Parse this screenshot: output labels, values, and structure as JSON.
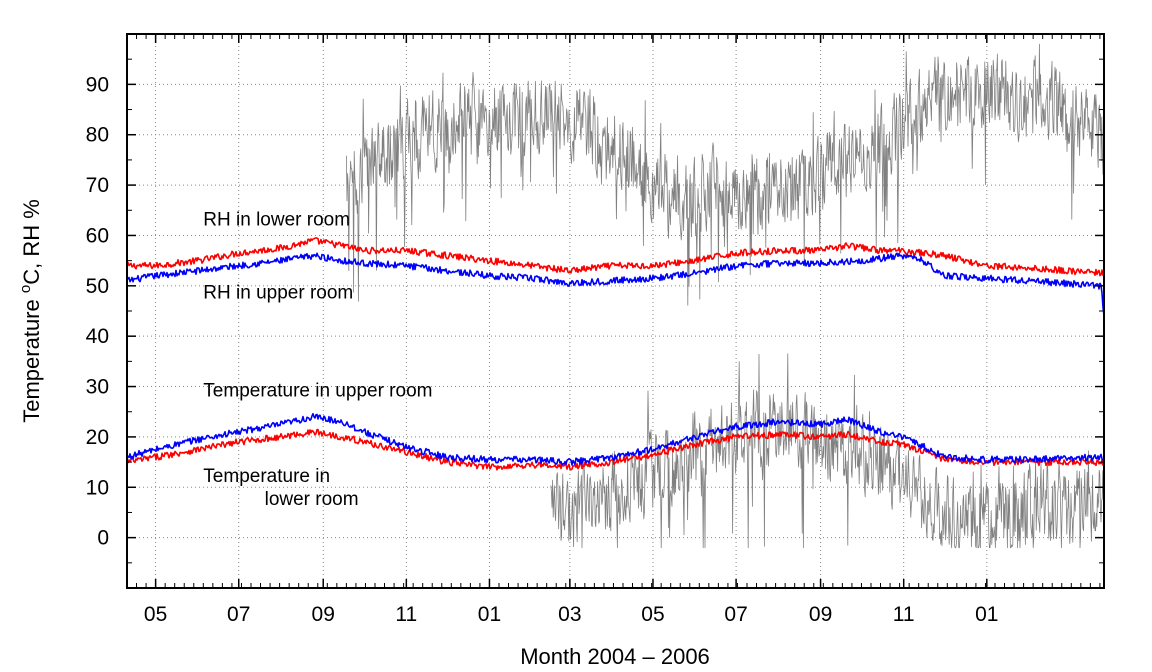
{
  "chart_data": {
    "type": "line",
    "title": "",
    "xlabel": "Month 2004 – 2006",
    "ylabel_main": "Temperature ",
    "ylabel_sup": "o",
    "ylabel_tail": "C, RH %",
    "grid": true,
    "ylim": [
      -10,
      100
    ],
    "xlim": [
      "2004-04-10",
      "2006-03-28"
    ],
    "yticks": [
      0,
      10,
      20,
      30,
      40,
      50,
      60,
      70,
      80,
      90
    ],
    "xticks": [
      {
        "date": "2004-05-01",
        "label": "05"
      },
      {
        "date": "2004-07-01",
        "label": "07"
      },
      {
        "date": "2004-09-01",
        "label": "09"
      },
      {
        "date": "2004-11-01",
        "label": "11"
      },
      {
        "date": "2005-01-01",
        "label": "01"
      },
      {
        "date": "2005-03-01",
        "label": "03"
      },
      {
        "date": "2005-05-01",
        "label": "05"
      },
      {
        "date": "2005-07-01",
        "label": "07"
      },
      {
        "date": "2005-09-01",
        "label": "09"
      },
      {
        "date": "2005-11-01",
        "label": "11"
      },
      {
        "date": "2006-01-01",
        "label": "01"
      }
    ],
    "series": [
      {
        "name": "RH in lower room",
        "color": "#ff0000",
        "x": [
          "2004-04-10",
          "2004-05-01",
          "2004-06-01",
          "2004-07-01",
          "2004-08-01",
          "2004-08-25",
          "2004-09-15",
          "2004-10-01",
          "2004-11-01",
          "2004-12-01",
          "2005-01-01",
          "2005-02-01",
          "2005-03-01",
          "2005-04-01",
          "2005-05-01",
          "2005-06-01",
          "2005-07-01",
          "2005-08-01",
          "2005-09-01",
          "2005-09-20",
          "2005-10-15",
          "2005-11-01",
          "2005-12-01",
          "2006-01-01",
          "2006-02-01",
          "2006-03-28"
        ],
        "y": [
          54,
          54,
          55,
          56.5,
          57.5,
          59,
          58,
          57,
          57,
          56,
          55,
          54,
          53,
          54,
          54,
          55,
          56.5,
          57,
          57,
          58,
          57,
          57,
          56,
          54,
          53.5,
          52.5
        ]
      },
      {
        "name": "RH in upper room",
        "color": "#0000ff",
        "x": [
          "2004-04-10",
          "2004-05-01",
          "2004-06-01",
          "2004-07-01",
          "2004-08-01",
          "2004-08-25",
          "2004-09-15",
          "2004-10-01",
          "2004-11-01",
          "2004-12-01",
          "2005-01-01",
          "2005-02-01",
          "2005-03-01",
          "2005-04-01",
          "2005-05-01",
          "2005-06-01",
          "2005-07-01",
          "2005-08-01",
          "2005-09-01",
          "2005-10-01",
          "2005-11-01",
          "2005-11-15",
          "2005-12-01",
          "2006-01-01",
          "2006-02-01",
          "2006-03-26",
          "2006-03-28"
        ],
        "y": [
          51,
          52,
          53,
          54,
          55,
          56,
          55,
          54.5,
          54,
          53,
          52,
          51.5,
          50.5,
          51,
          51.5,
          52.5,
          54,
          54.5,
          54.5,
          55,
          56,
          55,
          52,
          51.5,
          51,
          50,
          44
        ]
      },
      {
        "name": "Temperature in upper room",
        "color": "#0000ff",
        "x": [
          "2004-04-10",
          "2004-05-01",
          "2004-06-01",
          "2004-07-01",
          "2004-08-01",
          "2004-08-25",
          "2004-09-15",
          "2004-10-01",
          "2004-11-01",
          "2004-12-01",
          "2005-01-01",
          "2005-02-01",
          "2005-03-01",
          "2005-04-01",
          "2005-05-01",
          "2005-06-01",
          "2005-07-01",
          "2005-08-01",
          "2005-09-01",
          "2005-09-20",
          "2005-10-15",
          "2005-11-01",
          "2005-12-01",
          "2006-01-01",
          "2006-02-01",
          "2006-03-28"
        ],
        "y": [
          16,
          17.5,
          19.5,
          21,
          22.5,
          24,
          23,
          21,
          18,
          16,
          15.5,
          15.5,
          15,
          16,
          17.5,
          20,
          22,
          23,
          22.5,
          23.5,
          21,
          20,
          16,
          15.5,
          15.5,
          16
        ]
      },
      {
        "name": "Temperature in lower room",
        "color": "#ff0000",
        "x": [
          "2004-04-10",
          "2004-05-01",
          "2004-06-01",
          "2004-07-01",
          "2004-08-01",
          "2004-08-25",
          "2004-09-15",
          "2004-10-01",
          "2004-11-01",
          "2004-12-01",
          "2005-01-01",
          "2005-02-01",
          "2005-03-01",
          "2005-04-01",
          "2005-05-01",
          "2005-06-01",
          "2005-07-01",
          "2005-08-01",
          "2005-09-01",
          "2005-09-20",
          "2005-10-15",
          "2005-11-01",
          "2005-12-01",
          "2006-01-01",
          "2006-02-01",
          "2006-03-28"
        ],
        "y": [
          15,
          16,
          17.5,
          19,
          20,
          21,
          20,
          19,
          17,
          15,
          14,
          14.5,
          14,
          15,
          16.5,
          18.5,
          20,
          20.5,
          20,
          20.5,
          19,
          18.5,
          15.5,
          15,
          15,
          15
        ]
      },
      {
        "name": "",
        "color": "#808080",
        "x": [
          "2004-09-18",
          "2004-10-01",
          "2004-10-15",
          "2004-11-01",
          "2004-11-15",
          "2004-12-01",
          "2004-12-15",
          "2005-01-01",
          "2005-01-15",
          "2005-02-01",
          "2005-02-15",
          "2005-03-01",
          "2005-03-15",
          "2005-04-01",
          "2005-04-15",
          "2005-05-01",
          "2005-05-15",
          "2005-06-01",
          "2005-06-15",
          "2005-07-01",
          "2005-07-15",
          "2005-08-01",
          "2005-08-15",
          "2005-09-01",
          "2005-09-15",
          "2005-10-01",
          "2005-10-15",
          "2005-11-01",
          "2005-11-15",
          "2005-12-01",
          "2005-12-15",
          "2006-01-01",
          "2006-01-15",
          "2006-02-01",
          "2006-02-15",
          "2006-03-01",
          "2006-03-15",
          "2006-03-28"
        ],
        "y": [
          72,
          74,
          76,
          79,
          81,
          82,
          84,
          83,
          83,
          84,
          84,
          83,
          82,
          78,
          75,
          70,
          68,
          68,
          70,
          70,
          68,
          67,
          70,
          72,
          74,
          76,
          78,
          82,
          85,
          88,
          89,
          88,
          88,
          87,
          87,
          83,
          82,
          80
        ]
      },
      {
        "name": "",
        "color": "#808080",
        "x": [
          "2005-02-15",
          "2005-03-01",
          "2005-03-15",
          "2005-04-01",
          "2005-04-15",
          "2005-05-01",
          "2005-05-15",
          "2005-06-01",
          "2005-06-15",
          "2005-07-01",
          "2005-07-15",
          "2005-08-01",
          "2005-08-15",
          "2005-09-01",
          "2005-09-15",
          "2005-10-01",
          "2005-10-15",
          "2005-11-01",
          "2005-11-15",
          "2005-12-01",
          "2005-12-15",
          "2006-01-01",
          "2006-01-15",
          "2006-02-01",
          "2006-02-15",
          "2006-03-01",
          "2006-03-15",
          "2006-03-28"
        ],
        "y": [
          6,
          5,
          7,
          9,
          11,
          13,
          15,
          17,
          19,
          21,
          22,
          21,
          21,
          20,
          18,
          16,
          14,
          12,
          8,
          5,
          4,
          3,
          5,
          6,
          7,
          6,
          7,
          8
        ]
      }
    ],
    "annotations": [
      {
        "text": "RH in lower room",
        "x": "2004-06-05",
        "y": 62
      },
      {
        "text": "RH in upper room",
        "x": "2004-06-05",
        "y": 47.5
      },
      {
        "text": "Temperature in upper room",
        "x": "2004-06-05",
        "y": 28
      },
      {
        "text": "Temperature in",
        "x": "2004-06-05",
        "y": 11
      },
      {
        "text": "lower room",
        "x": "2004-07-20",
        "y": 6.5
      }
    ]
  }
}
